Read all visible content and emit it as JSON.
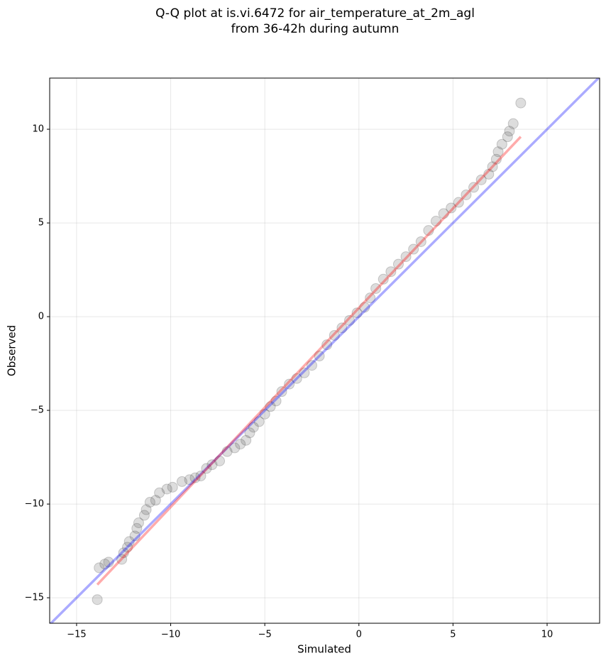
{
  "chart_data": {
    "type": "scatter",
    "title": [
      "Q-Q plot at is.vi.6472 for air_temperature_at_2m_agl",
      "from 36-42h during autumn"
    ],
    "xlabel": "Simulated",
    "ylabel": "Observed",
    "xlim": [
      -16.43,
      12.79
    ],
    "ylim": [
      -16.36,
      12.73
    ],
    "xticks": [
      {
        "value": -15,
        "label": "−15"
      },
      {
        "value": -10,
        "label": "−10"
      },
      {
        "value": -5,
        "label": "−5"
      },
      0,
      5,
      10
    ],
    "yticks": [
      {
        "value": -15,
        "label": "−15"
      },
      {
        "value": -10,
        "label": "−10"
      },
      {
        "value": -5,
        "label": "−5"
      },
      0,
      5,
      10
    ],
    "grid": true,
    "color": "#444444",
    "x": [
      -13.9,
      -13.8,
      -13.5,
      -13.3,
      -12.6,
      -12.5,
      -12.3,
      -12.2,
      -11.9,
      -11.8,
      -11.7,
      -11.4,
      -11.3,
      -11.1,
      -10.8,
      -10.6,
      -10.2,
      -9.9,
      -9.4,
      -9.0,
      -8.7,
      -8.4,
      -8.1,
      -7.8,
      -7.4,
      -7.0,
      -6.6,
      -6.3,
      -6.0,
      -5.8,
      -5.6,
      -5.3,
      -5.0,
      -4.7,
      -4.4,
      -4.1,
      -3.7,
      -3.3,
      -2.9,
      -2.5,
      -2.1,
      -1.7,
      -1.3,
      -0.9,
      -0.5,
      -0.1,
      0.3,
      0.6,
      0.9,
      1.3,
      1.7,
      2.1,
      2.5,
      2.9,
      3.3,
      3.7,
      4.1,
      4.5,
      4.9,
      5.3,
      5.7,
      6.1,
      6.5,
      6.9,
      7.1,
      7.3,
      7.4,
      7.6,
      7.9,
      8.0,
      8.2,
      8.6
    ],
    "y": [
      -15.1,
      -13.4,
      -13.2,
      -13.1,
      -12.95,
      -12.6,
      -12.3,
      -12.0,
      -11.7,
      -11.3,
      -11.0,
      -10.6,
      -10.3,
      -9.9,
      -9.8,
      -9.4,
      -9.2,
      -9.1,
      -8.8,
      -8.7,
      -8.6,
      -8.5,
      -8.1,
      -7.9,
      -7.7,
      -7.2,
      -7.0,
      -6.8,
      -6.6,
      -6.2,
      -5.9,
      -5.6,
      -5.2,
      -4.8,
      -4.5,
      -4.0,
      -3.6,
      -3.3,
      -3.0,
      -2.6,
      -2.1,
      -1.5,
      -1.0,
      -0.6,
      -0.2,
      0.2,
      0.5,
      1.0,
      1.5,
      2.0,
      2.4,
      2.8,
      3.2,
      3.6,
      4.0,
      4.6,
      5.1,
      5.5,
      5.8,
      6.1,
      6.5,
      6.9,
      7.3,
      7.6,
      8.0,
      8.4,
      8.8,
      9.2,
      9.6,
      9.9,
      10.3,
      11.4
    ],
    "reference_lines": [
      {
        "color": "#0000ff",
        "x": [
          -16.43,
          12.79
        ],
        "y": [
          -16.43,
          12.79
        ]
      },
      {
        "color": "#ff0000",
        "x": [
          -13.9,
          8.6
        ],
        "y": [
          -14.3,
          9.6
        ]
      }
    ]
  }
}
